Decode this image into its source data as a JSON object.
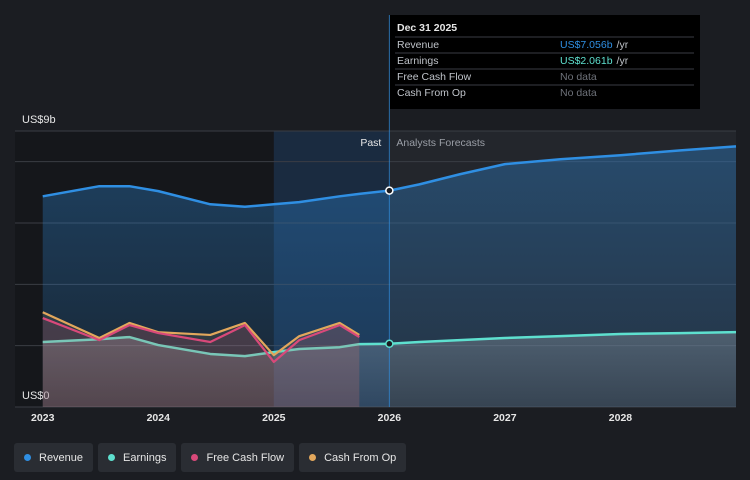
{
  "chart_data": {
    "type": "line",
    "x": [
      2023.0,
      2023.49,
      2023.75,
      2024.0,
      2024.45,
      2024.75,
      2025.0,
      2025.22,
      2025.57,
      2025.74,
      2026.0,
      2026.26,
      2026.61,
      2027.0,
      2027.48,
      2028.0,
      2028.52,
      2029.0
    ],
    "series": [
      {
        "name": "Revenue",
        "color": "#2f8fe3",
        "values": [
          6.87,
          7.2,
          7.2,
          7.04,
          6.61,
          6.53,
          6.61,
          6.68,
          6.87,
          6.95,
          7.056,
          7.26,
          7.59,
          7.92,
          8.08,
          8.21,
          8.37,
          8.5
        ]
      },
      {
        "name": "Earnings",
        "color": "#5ee0cf",
        "values": [
          2.12,
          2.21,
          2.28,
          2.02,
          1.73,
          1.66,
          1.79,
          1.89,
          1.95,
          2.05,
          2.061,
          2.12,
          2.18,
          2.25,
          2.31,
          2.38,
          2.41,
          2.44
        ]
      },
      {
        "name": "Free Cash Flow",
        "color": "#d9497a",
        "values": [
          2.9,
          2.18,
          2.67,
          2.41,
          2.12,
          2.67,
          1.47,
          2.18,
          2.67,
          2.28,
          null,
          null,
          null,
          null,
          null,
          null,
          null,
          null
        ]
      },
      {
        "name": "Cash From Op",
        "color": "#e2a75c",
        "values": [
          3.09,
          2.25,
          2.74,
          2.44,
          2.35,
          2.74,
          1.69,
          2.31,
          2.74,
          2.35,
          null,
          null,
          null,
          null,
          null,
          null,
          null,
          null
        ]
      }
    ],
    "xlim": [
      2022.76,
      2029.0
    ],
    "xticks": [
      2023,
      2024,
      2025,
      2026,
      2027,
      2028
    ],
    "ylim": [
      0,
      9
    ],
    "yticks": [
      {
        "value": 0,
        "label": "US$0"
      },
      {
        "value": 9,
        "label": "US$9b"
      }
    ],
    "gridlines": [
      2,
      4,
      6,
      8
    ],
    "forecast_start": 2026,
    "highlight_range": [
      2025,
      2026
    ],
    "annotations": {
      "past": "Past",
      "forecast": "Analysts Forecasts"
    },
    "tooltip": {
      "date": "Dec 31 2025",
      "unit": "/yr",
      "rows": [
        {
          "label": "Revenue",
          "value": "US$7.056b"
        },
        {
          "label": "Earnings",
          "value": "US$2.061b"
        },
        {
          "label": "Free Cash Flow",
          "value": "No data"
        },
        {
          "label": "Cash From Op",
          "value": "No data"
        }
      ]
    }
  }
}
